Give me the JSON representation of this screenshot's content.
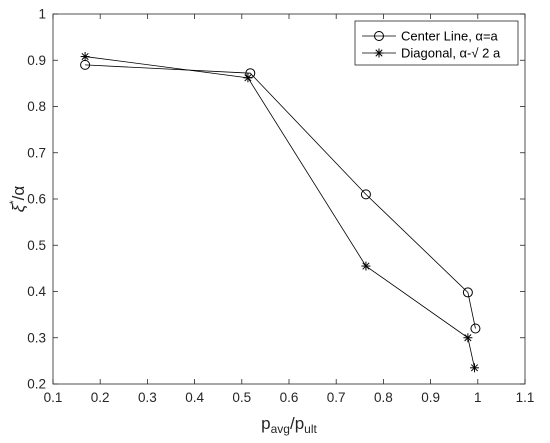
{
  "chart_data": {
    "type": "line",
    "title": "",
    "xlabel": {
      "base": "p",
      "sub1": "avg",
      "sep": "/p",
      "sub2": "ult"
    },
    "ylabel": {
      "xi": "ξ",
      "star": "*",
      "rest": "/α"
    },
    "xlim": [
      0.1,
      1.1
    ],
    "ylim": [
      0.2,
      1.0
    ],
    "xticks": [
      0.1,
      0.2,
      0.3,
      0.4,
      0.5,
      0.6,
      0.7,
      0.8,
      0.9,
      1.0,
      1.1
    ],
    "xtick_labels": [
      "0.1",
      "0.2",
      "0.3",
      "0.4",
      "0.5",
      "0.6",
      "0.7",
      "0.8",
      "0.9",
      "1",
      "1.1"
    ],
    "yticks": [
      0.2,
      0.3,
      0.4,
      0.5,
      0.6,
      0.7,
      0.8,
      0.9,
      1.0
    ],
    "ytick_labels": [
      "0.2",
      "0.3",
      "0.4",
      "0.5",
      "0.6",
      "0.7",
      "0.8",
      "0.9",
      "1"
    ],
    "grid": false,
    "legend_position": "top-right",
    "series": [
      {
        "name": "Center Line, α=a",
        "marker": "circle",
        "color": "#000000",
        "x": [
          0.168,
          0.518,
          0.763,
          0.979,
          0.995
        ],
        "y": [
          0.89,
          0.872,
          0.61,
          0.398,
          0.32
        ]
      },
      {
        "name": "Diagonal, α-√ 2 a",
        "marker": "asterisk",
        "color": "#000000",
        "x": [
          0.168,
          0.513,
          0.763,
          0.979,
          0.993
        ],
        "y": [
          0.908,
          0.862,
          0.455,
          0.3,
          0.235
        ]
      }
    ]
  }
}
